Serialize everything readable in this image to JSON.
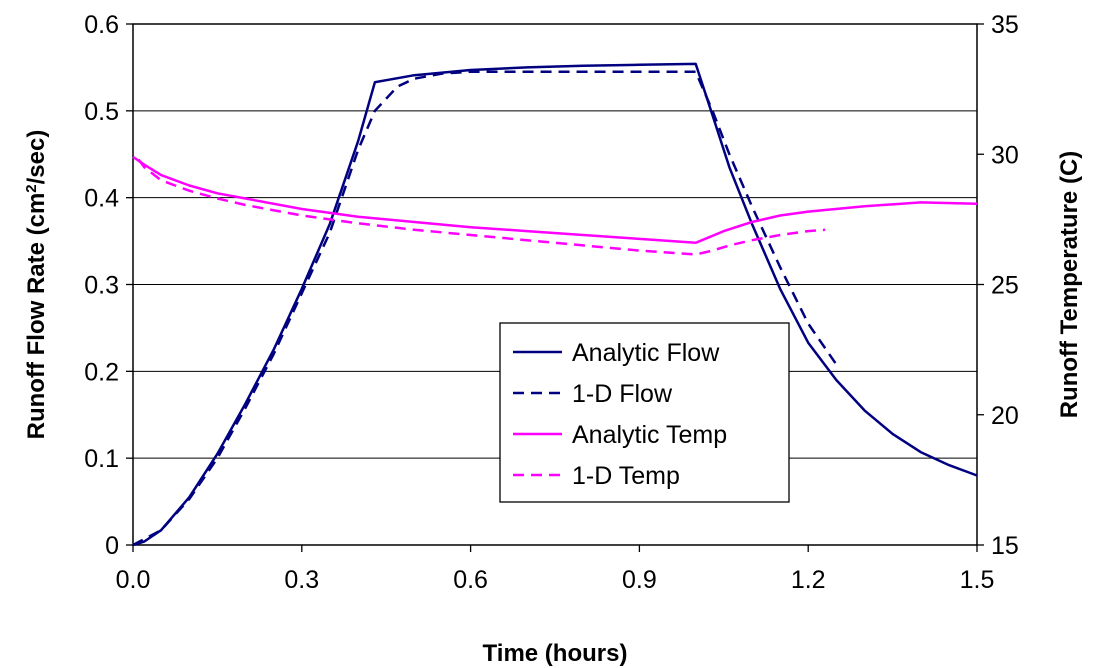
{
  "chart_data": {
    "type": "line",
    "title": "",
    "xlabel": "Time (hours)",
    "ylabel": "Runoff Flow Rate (cm²/sec)",
    "ylabel_parts": [
      "Runoff Flow Rate (cm",
      "2",
      "/sec)"
    ],
    "y2label": "Runoff Temperature (C)",
    "xlim": [
      0,
      1.5
    ],
    "ylim": [
      0,
      0.6
    ],
    "y2lim": [
      15,
      35
    ],
    "x_ticks": [
      "0.0",
      "0.3",
      "0.6",
      "0.9",
      "1.2",
      "1.5"
    ],
    "y_ticks": [
      "0",
      "0.1",
      "0.2",
      "0.3",
      "0.4",
      "0.5",
      "0.6"
    ],
    "y2_ticks": [
      "15",
      "20",
      "25",
      "30",
      "35"
    ],
    "grid": "horizontal",
    "legend_position": "center",
    "series": [
      {
        "name": "Analytic Flow",
        "axis": "left",
        "color": "#000080",
        "dash": "solid",
        "x": [
          0,
          0.02,
          0.05,
          0.1,
          0.15,
          0.2,
          0.25,
          0.3,
          0.35,
          0.4,
          0.43,
          0.5,
          0.6,
          0.7,
          0.8,
          0.9,
          1.0,
          1.03,
          1.06,
          1.1,
          1.15,
          1.2,
          1.25,
          1.3,
          1.35,
          1.4,
          1.45,
          1.5
        ],
        "y": [
          0,
          0.004,
          0.017,
          0.055,
          0.105,
          0.163,
          0.225,
          0.295,
          0.37,
          0.465,
          0.533,
          0.541,
          0.547,
          0.55,
          0.552,
          0.553,
          0.554,
          0.495,
          0.435,
          0.37,
          0.295,
          0.233,
          0.19,
          0.155,
          0.128,
          0.107,
          0.092,
          0.08
        ]
      },
      {
        "name": "1-D Flow",
        "axis": "left",
        "color": "#000080",
        "dash": "dashed",
        "x": [
          0,
          0.05,
          0.1,
          0.15,
          0.2,
          0.25,
          0.3,
          0.35,
          0.4,
          0.43,
          0.47,
          0.5,
          0.55,
          0.6,
          0.7,
          0.8,
          0.9,
          1.0,
          1.03,
          1.06,
          1.1,
          1.15,
          1.2,
          1.25
        ],
        "y": [
          0,
          0.017,
          0.053,
          0.1,
          0.158,
          0.22,
          0.29,
          0.36,
          0.455,
          0.5,
          0.528,
          0.537,
          0.543,
          0.545,
          0.545,
          0.545,
          0.545,
          0.545,
          0.5,
          0.45,
          0.39,
          0.32,
          0.255,
          0.208
        ]
      },
      {
        "name": "Analytic Temp",
        "axis": "right",
        "color": "#ff00ff",
        "dash": "solid",
        "x": [
          0,
          0.02,
          0.05,
          0.1,
          0.15,
          0.2,
          0.3,
          0.4,
          0.5,
          0.6,
          0.7,
          0.8,
          0.9,
          1.0,
          1.05,
          1.1,
          1.15,
          1.2,
          1.3,
          1.4,
          1.5
        ],
        "y": [
          29.9,
          29.6,
          29.2,
          28.8,
          28.5,
          28.3,
          27.9,
          27.6,
          27.4,
          27.2,
          27.05,
          26.9,
          26.75,
          26.6,
          27.05,
          27.4,
          27.65,
          27.8,
          28.0,
          28.15,
          28.1
        ]
      },
      {
        "name": "1-D Temp",
        "axis": "right",
        "color": "#ff00ff",
        "dash": "dashed",
        "x": [
          0.01,
          0.02,
          0.05,
          0.1,
          0.15,
          0.2,
          0.3,
          0.4,
          0.5,
          0.6,
          0.7,
          0.8,
          0.9,
          1.0,
          1.03,
          1.06,
          1.1,
          1.15,
          1.2,
          1.23
        ],
        "y": [
          29.8,
          29.5,
          29.0,
          28.6,
          28.3,
          28.05,
          27.65,
          27.35,
          27.1,
          26.9,
          26.7,
          26.5,
          26.3,
          26.15,
          26.3,
          26.5,
          26.7,
          26.9,
          27.05,
          27.1
        ]
      }
    ]
  }
}
